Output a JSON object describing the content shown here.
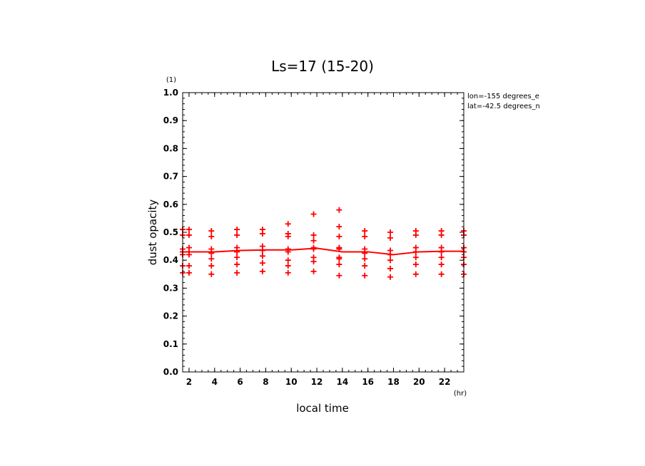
{
  "chart_data": {
    "type": "scatter",
    "title": "Ls=17 (15-20)",
    "xlabel": "local time",
    "ylabel": "dust opacity",
    "x_unit": "(hr)",
    "y_unit": "(1)",
    "xlim": [
      1.5,
      23.5
    ],
    "ylim": [
      0.0,
      1.0
    ],
    "x_ticks": [
      "2",
      "4",
      "6",
      "8",
      "10",
      "12",
      "14",
      "16",
      "18",
      "20",
      "22"
    ],
    "y_ticks": [
      "0.0",
      "0.1",
      "0.2",
      "0.3",
      "0.4",
      "0.5",
      "0.6",
      "0.7",
      "0.8",
      "0.9",
      "1.0"
    ],
    "annotations": [
      "lon=-155 degrees_e",
      "lat=-42.5 degrees_n"
    ],
    "colors": {
      "series": "#ff0000",
      "axes": "#000000"
    },
    "series": [
      {
        "name": "mean",
        "style": "line",
        "x": [
          1.5,
          2,
          4,
          6,
          8,
          10,
          12,
          14,
          16,
          18,
          20,
          22,
          23.5
        ],
        "y": [
          0.43,
          0.43,
          0.43,
          0.435,
          0.437,
          0.437,
          0.443,
          0.43,
          0.43,
          0.42,
          0.43,
          0.432,
          0.432
        ]
      },
      {
        "name": "samples",
        "style": "plus",
        "points": [
          [
            1.5,
            0.51
          ],
          [
            1.5,
            0.49
          ],
          [
            1.5,
            0.44
          ],
          [
            1.5,
            0.43
          ],
          [
            1.5,
            0.42
          ],
          [
            1.5,
            0.38
          ],
          [
            1.5,
            0.355
          ],
          [
            2,
            0.51
          ],
          [
            2,
            0.49
          ],
          [
            2,
            0.445
          ],
          [
            2,
            0.43
          ],
          [
            2,
            0.42
          ],
          [
            2,
            0.38
          ],
          [
            2,
            0.355
          ],
          [
            3.75,
            0.505
          ],
          [
            3.75,
            0.485
          ],
          [
            3.75,
            0.44
          ],
          [
            3.75,
            0.425
          ],
          [
            3.75,
            0.405
          ],
          [
            3.75,
            0.38
          ],
          [
            3.75,
            0.35
          ],
          [
            5.75,
            0.51
          ],
          [
            5.75,
            0.49
          ],
          [
            5.75,
            0.445
          ],
          [
            5.75,
            0.43
          ],
          [
            5.75,
            0.41
          ],
          [
            5.75,
            0.385
          ],
          [
            5.75,
            0.355
          ],
          [
            7.75,
            0.51
          ],
          [
            7.75,
            0.495
          ],
          [
            7.75,
            0.45
          ],
          [
            7.75,
            0.435
          ],
          [
            7.75,
            0.415
          ],
          [
            7.75,
            0.39
          ],
          [
            7.75,
            0.36
          ],
          [
            9.75,
            0.53
          ],
          [
            9.75,
            0.495
          ],
          [
            9.75,
            0.485
          ],
          [
            9.75,
            0.44
          ],
          [
            9.75,
            0.43
          ],
          [
            9.75,
            0.4
          ],
          [
            9.75,
            0.38
          ],
          [
            9.75,
            0.355
          ],
          [
            11.75,
            0.565
          ],
          [
            11.75,
            0.49
          ],
          [
            11.75,
            0.47
          ],
          [
            11.75,
            0.445
          ],
          [
            11.75,
            0.44
          ],
          [
            11.75,
            0.41
          ],
          [
            11.75,
            0.395
          ],
          [
            11.75,
            0.36
          ],
          [
            13.75,
            0.58
          ],
          [
            13.75,
            0.52
          ],
          [
            13.75,
            0.485
          ],
          [
            13.75,
            0.445
          ],
          [
            13.75,
            0.44
          ],
          [
            13.75,
            0.41
          ],
          [
            13.75,
            0.405
          ],
          [
            13.75,
            0.385
          ],
          [
            13.75,
            0.345
          ],
          [
            15.75,
            0.505
          ],
          [
            15.75,
            0.485
          ],
          [
            15.75,
            0.44
          ],
          [
            15.75,
            0.425
          ],
          [
            15.75,
            0.405
          ],
          [
            15.75,
            0.38
          ],
          [
            15.75,
            0.345
          ],
          [
            17.75,
            0.5
          ],
          [
            17.75,
            0.48
          ],
          [
            17.75,
            0.435
          ],
          [
            17.75,
            0.42
          ],
          [
            17.75,
            0.4
          ],
          [
            17.75,
            0.37
          ],
          [
            17.75,
            0.34
          ],
          [
            19.75,
            0.505
          ],
          [
            19.75,
            0.49
          ],
          [
            19.75,
            0.445
          ],
          [
            19.75,
            0.43
          ],
          [
            19.75,
            0.41
          ],
          [
            19.75,
            0.385
          ],
          [
            19.75,
            0.35
          ],
          [
            21.75,
            0.505
          ],
          [
            21.75,
            0.49
          ],
          [
            21.75,
            0.445
          ],
          [
            21.75,
            0.43
          ],
          [
            21.75,
            0.41
          ],
          [
            21.75,
            0.385
          ],
          [
            21.75,
            0.35
          ],
          [
            23.5,
            0.505
          ],
          [
            23.5,
            0.49
          ],
          [
            23.5,
            0.445
          ],
          [
            23.5,
            0.43
          ],
          [
            23.5,
            0.41
          ],
          [
            23.5,
            0.385
          ],
          [
            23.5,
            0.35
          ]
        ]
      }
    ]
  }
}
